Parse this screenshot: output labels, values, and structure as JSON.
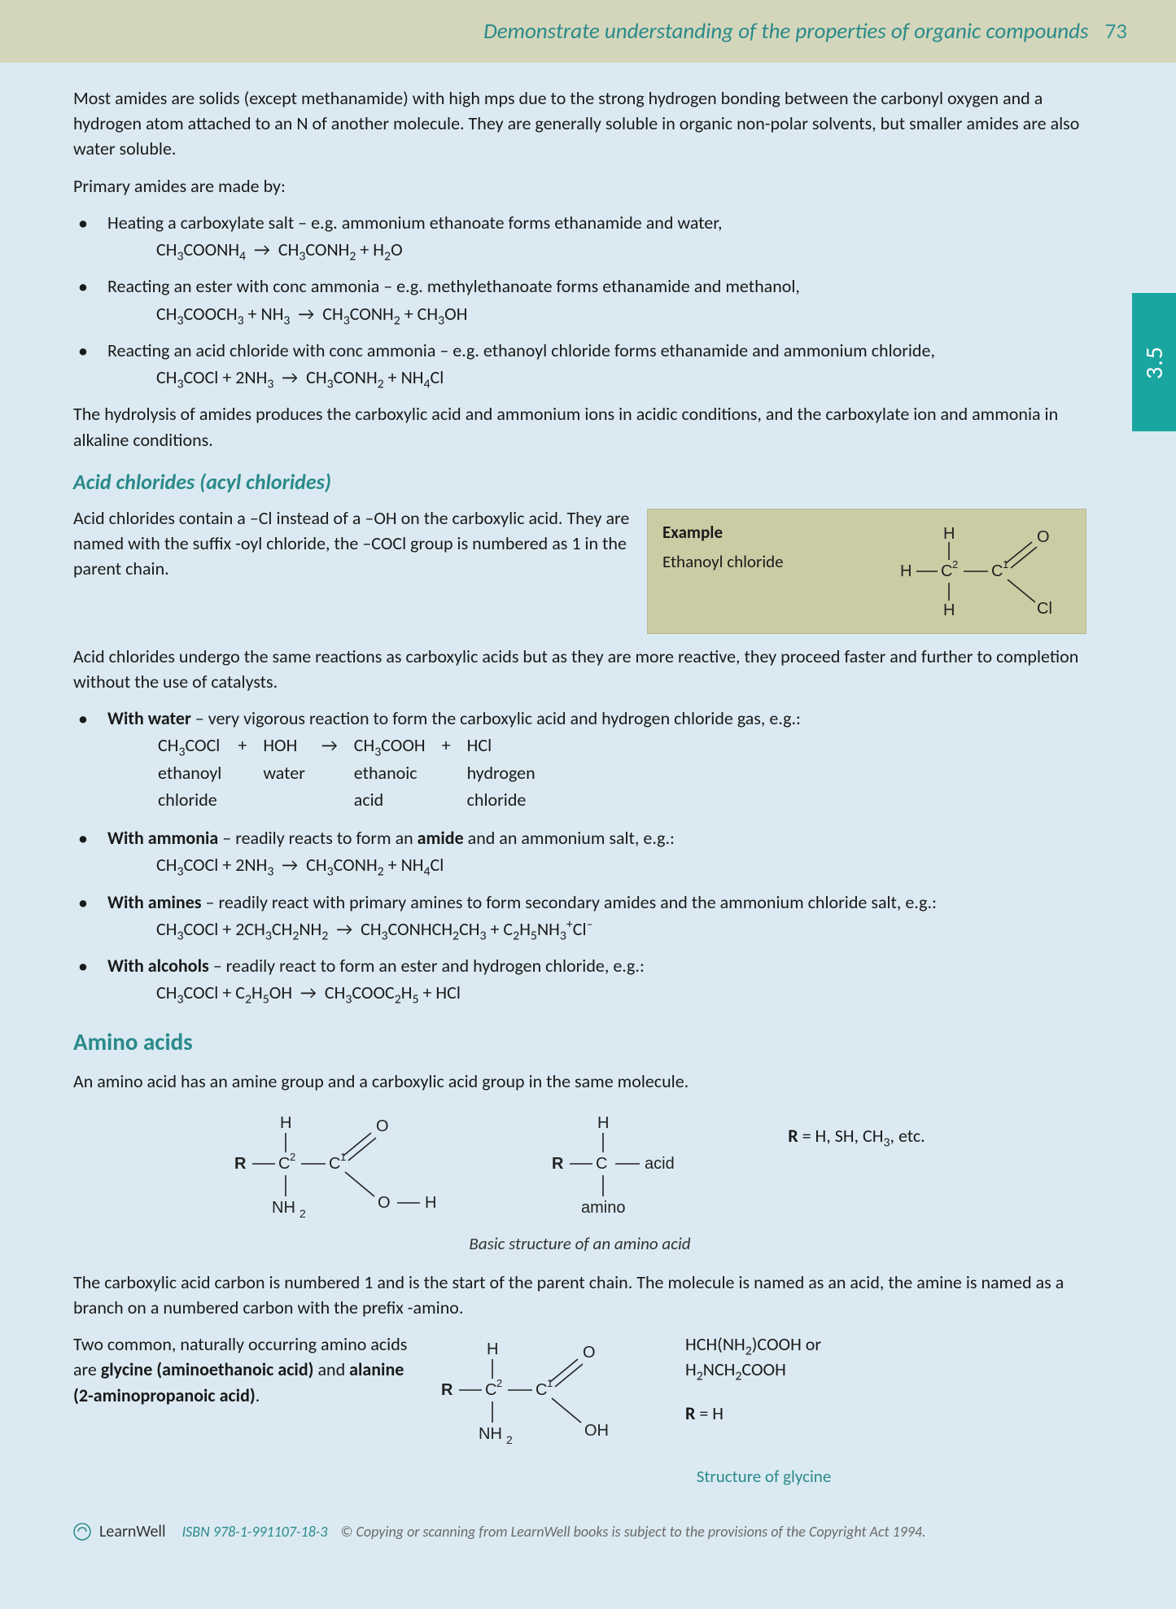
{
  "header": {
    "title": "Demonstrate understanding of the properties of organic compounds",
    "page": "73"
  },
  "sidetab": "3.5",
  "p_intro": "Most amides are solids (except methanamide) with high mps due to the strong hydrogen bonding between the carbonyl oxygen and a hydrogen atom attached to an N of another molecule. They are generally soluble in organic non-polar solvents, but smaller amides are also water soluble.",
  "p_madeby": "Primary amides are made by:",
  "amide_bullets": [
    {
      "text": "Heating a carboxylate salt – e.g. ammonium ethanoate forms ethanamide and water,",
      "eq_html": "CH<sub>3</sub>COONH<sub>4</sub>&nbsp;&nbsp;→&nbsp;&nbsp;CH<sub>3</sub>CONH<sub>2</sub> + H<sub>2</sub>O"
    },
    {
      "text": "Reacting an ester with conc ammonia – e.g. methylethanoate forms ethanamide and methanol,",
      "eq_html": "CH<sub>3</sub>COOCH<sub>3</sub> + NH<sub>3</sub>&nbsp;&nbsp;→&nbsp;&nbsp;CH<sub>3</sub>CONH<sub>2</sub> + CH<sub>3</sub>OH"
    },
    {
      "text": "Reacting an acid chloride with conc ammonia – e.g. ethanoyl chloride forms ethanamide and ammonium chloride,",
      "eq_html": "CH<sub>3</sub>COCl + 2NH<sub>3</sub>&nbsp;&nbsp;→&nbsp;&nbsp;CH<sub>3</sub>CONH<sub>2</sub> + NH<sub>4</sub>Cl"
    }
  ],
  "p_hydrolysis": "The hydrolysis of amides produces the carboxylic acid and ammonium ions in acidic conditions, and the carboxylate ion and ammonia in alkaline conditions.",
  "h_acidchlorides": "Acid chlorides (acyl chlorides)",
  "p_acidchlorides1": "Acid chlorides contain a –Cl instead of a –OH on the carboxylic acid. They are named with the suffix -oyl chloride, the –COCl group is numbered as 1 in the parent chain.",
  "example": {
    "label": "Example",
    "name": "Ethanoyl chloride"
  },
  "p_acidchlorides2": "Acid chlorides undergo the same reactions as carboxylic acids but as they are more reactive, they proceed faster and further to completion without the use of catalysts.",
  "acyl_bullets": [
    {
      "lead": "With water",
      "rest": " – very vigorous reaction to form the carboxylic acid and hydrogen chloride gas, e.g.:"
    },
    {
      "lead": "With ammonia",
      "rest": " – readily reacts to form an ",
      "bold2": "amide",
      "rest2": " and an ammonium salt, e.g.:",
      "eq_html": "CH<sub>3</sub>COCl + 2NH<sub>3</sub>&nbsp;&nbsp;→&nbsp;&nbsp;CH<sub>3</sub>CONH<sub>2</sub> + NH<sub>4</sub>Cl"
    },
    {
      "lead": "With amines",
      "rest": " – readily react with primary amines to form secondary amides and the ammonium chloride salt, e.g.:",
      "eq_html": "CH<sub>3</sub>COCl + 2CH<sub>3</sub>CH<sub>2</sub>NH<sub>2</sub>&nbsp;&nbsp;→&nbsp;&nbsp;CH<sub>3</sub>CONHCH<sub>2</sub>CH<sub>3</sub> + C<sub>2</sub>H<sub>5</sub>NH<sub>3</sub><sup>+</sup>Cl<sup>–</sup>"
    },
    {
      "lead": "With alcohols",
      "rest": " – readily react to form an ester and hydrogen chloride, e.g.:",
      "eq_html": "CH<sub>3</sub>COCl + C<sub>2</sub>H<sub>5</sub>OH&nbsp;&nbsp;→&nbsp;&nbsp;CH<sub>3</sub>COOC<sub>2</sub>H<sub>5</sub> + HCl"
    }
  ],
  "water_table": {
    "r1": [
      "CH<sub>3</sub>COCl",
      "+",
      "HOH",
      "→",
      "CH<sub>3</sub>COOH",
      "+",
      "HCl"
    ],
    "r2": [
      "ethanoyl",
      "",
      "water",
      "",
      "ethanoic",
      "",
      "hydrogen"
    ],
    "r3": [
      "chloride",
      "",
      "",
      "",
      "acid",
      "",
      "chloride"
    ]
  },
  "h_aminoacids": "Amino acids",
  "p_aa1": "An amino acid has an amine group and a carboxylic acid group in the same molecule.",
  "r_label": "R",
  "r_vals": " = H, SH, CH<sub>3</sub>, etc.",
  "aa_caption": "Basic structure of an amino acid",
  "p_aa2": "The carboxylic acid carbon is numbered 1 and is the start of the parent chain. The molecule is named as an acid, the amine is named as a branch on a numbered carbon with the prefix -amino.",
  "p_aa3a": "Two common, naturally occurring amino acids are ",
  "p_aa3b": "glycine (aminoethanoic acid)",
  "p_aa3c": " and ",
  "p_aa3d": "alanine (2-aminopropanoic acid)",
  "p_aa3e": ".",
  "glycine_formula1": "HCH(NH<sub>2</sub>)COOH or",
  "glycine_formula2": "H<sub>2</sub>NCH<sub>2</sub>COOH",
  "glycine_R": "R",
  "glycine_Rv": " = H",
  "glycine_caption": "Structure of glycine",
  "footer": {
    "brand": "LearnWell",
    "isbn": "ISBN 978-1-991107-18-3",
    "copy": "© Copying or scanning from LearnWell books is subject to the provisions of the Copyright Act 1994."
  },
  "colors": {
    "page_bg": "#dbeaf2",
    "header_bg": "#d3d6bb",
    "teal": "#2a8a8a",
    "tab_bg": "#1aa6a0",
    "box_bg": "#cbcca4"
  }
}
